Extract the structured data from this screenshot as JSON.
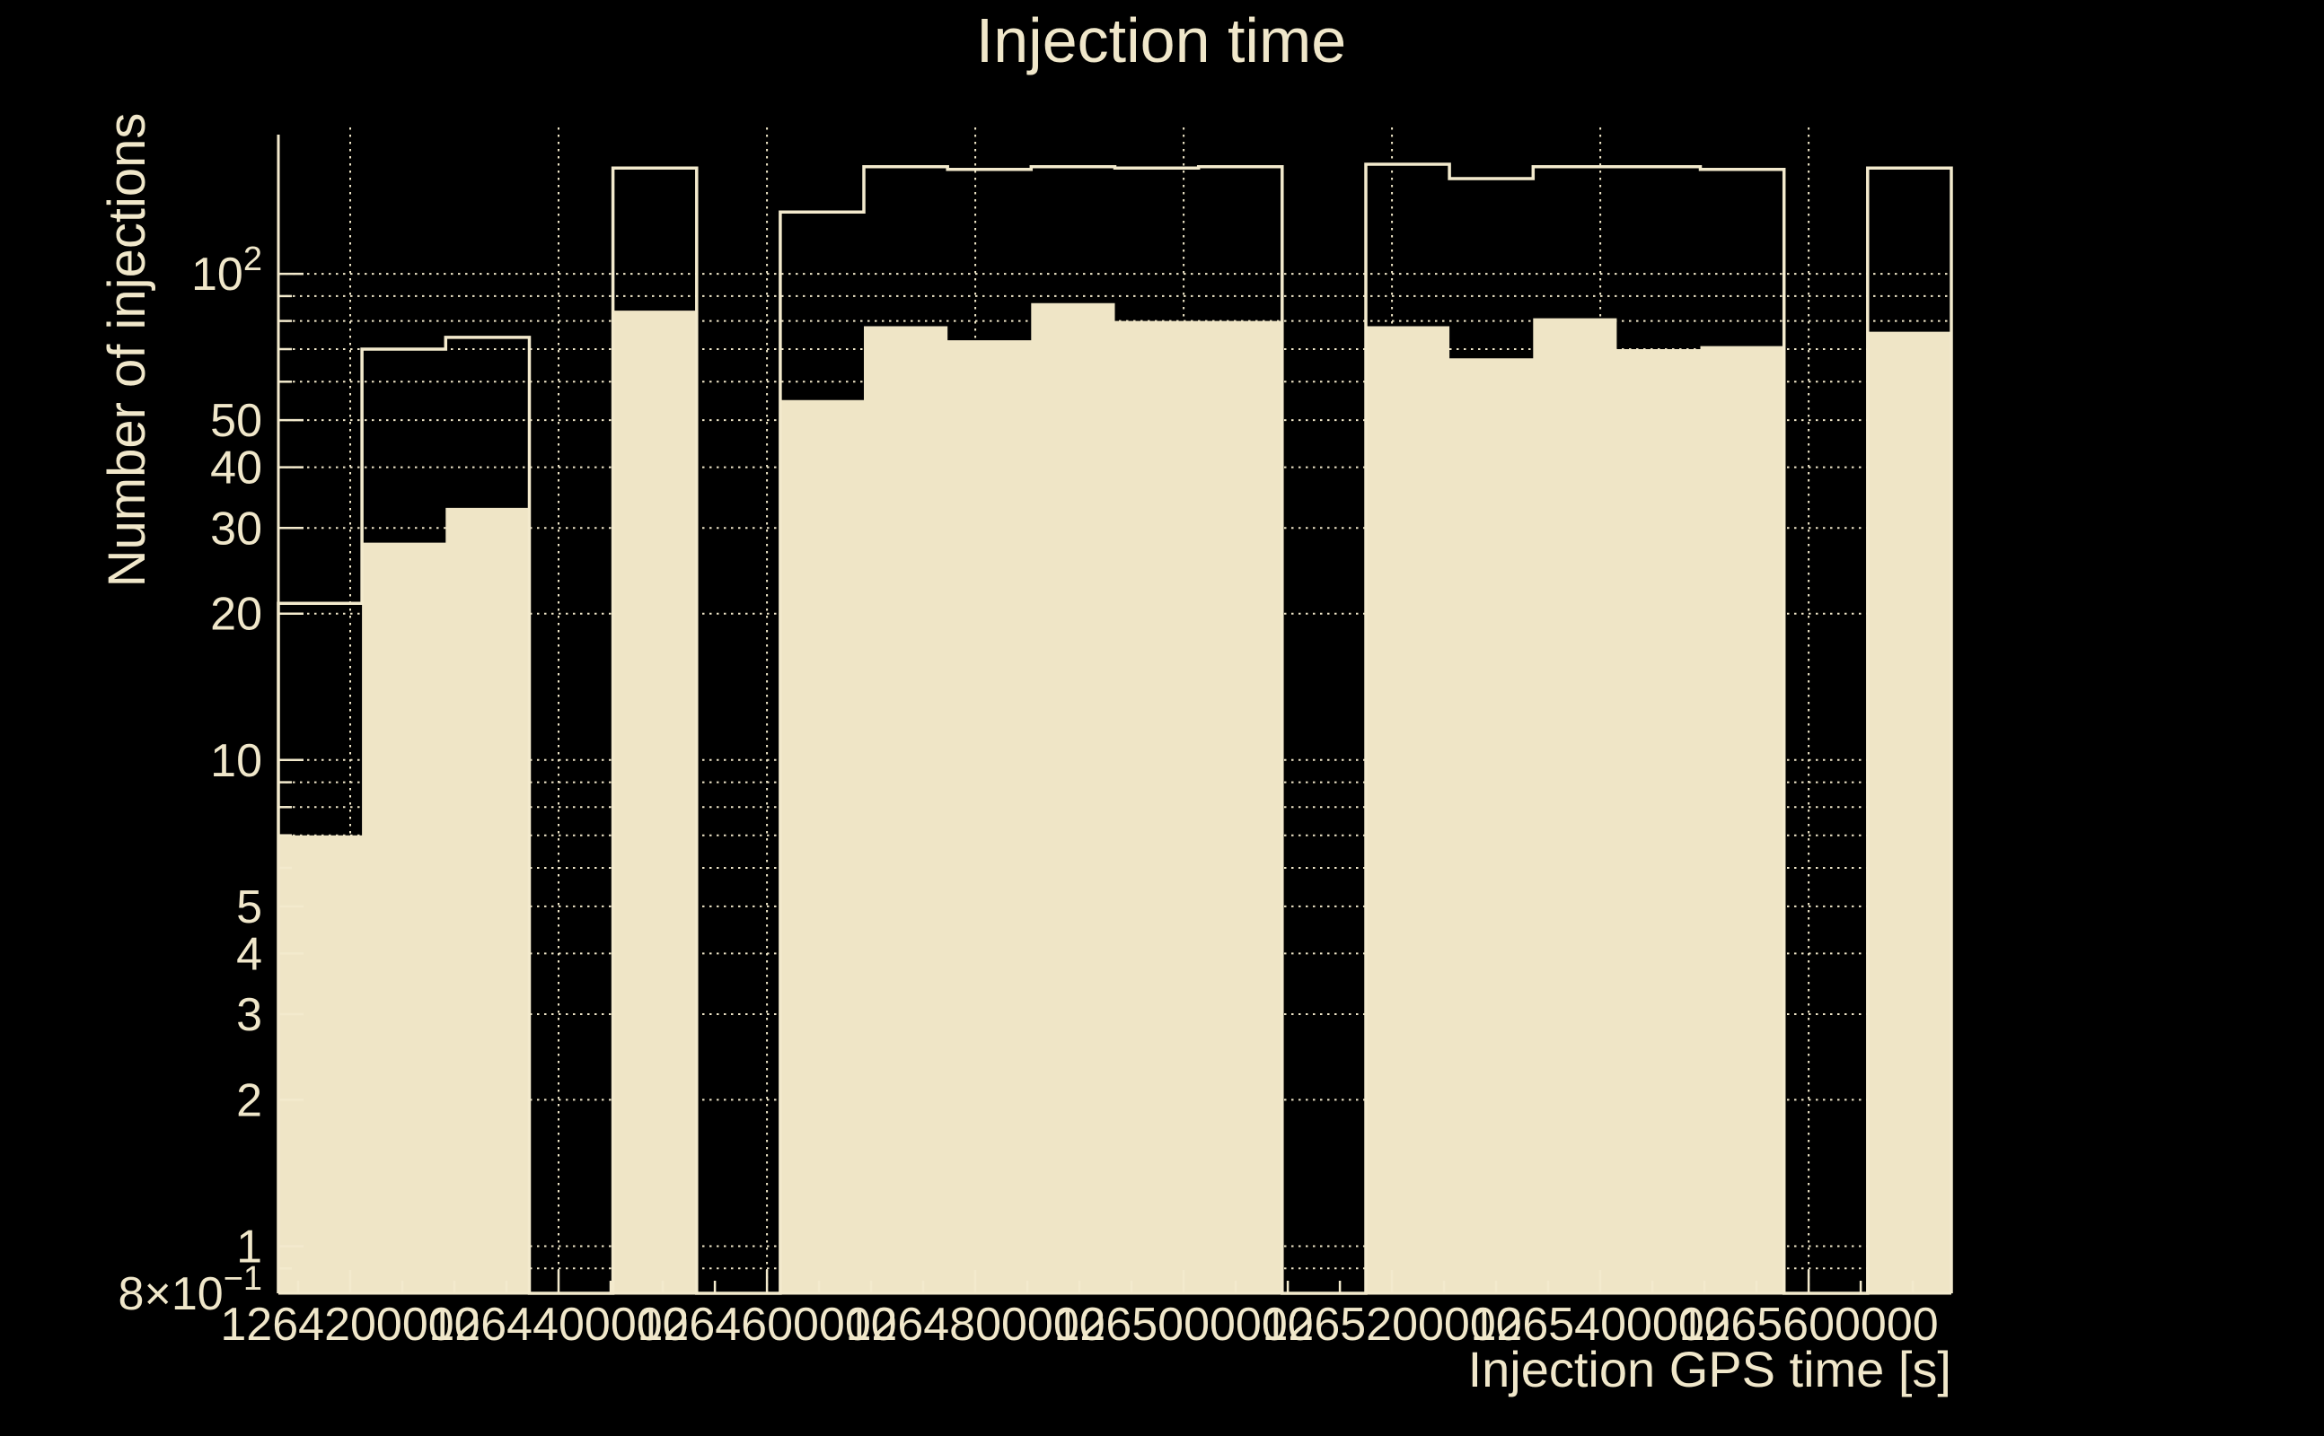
{
  "colors": {
    "background": "#000000",
    "fill": "#EFE5C6",
    "line": "#F3EACD",
    "text": "#F0E7CA",
    "grid": "#EFE6C8"
  },
  "chart_data": {
    "type": "bar",
    "style": "overlaid step histograms (ROOT), log y-axis, filled series under open-outline series",
    "title": "Injection time",
    "xlabel": "Injection GPS time [s]",
    "ylabel": "Number of injections",
    "x_range": [
      1264131000,
      1265737000
    ],
    "y_range": [
      0.8,
      200
    ],
    "log_y": true,
    "grid": true,
    "legend_position": "none",
    "bin_edges_gps": [
      1264131000,
      1264211300,
      1264291600,
      1264371900,
      1264452200,
      1264532500,
      1264612800,
      1264693100,
      1264773400,
      1264853700,
      1264934000,
      1265014300,
      1265094600,
      1265174900,
      1265255200,
      1265335500,
      1265415800,
      1265496100,
      1265576400,
      1265656700,
      1265737000
    ],
    "series": [
      {
        "name": "outline-histogram",
        "draw": "step-outline",
        "values": [
          21,
          70,
          74,
          0,
          165,
          0,
          134,
          166,
          164,
          166,
          165,
          166,
          0,
          168,
          157,
          166,
          166,
          164,
          0,
          165
        ]
      },
      {
        "name": "filled-histogram",
        "draw": "filled",
        "values": [
          7,
          28,
          33,
          0,
          84,
          0,
          55,
          78,
          73,
          87,
          80,
          80,
          0,
          78,
          67,
          81,
          70,
          71,
          0,
          76
        ]
      }
    ],
    "x_ticks": [
      1264200000,
      1264400000,
      1264600000,
      1264800000,
      1265000000,
      1265200000,
      1265400000,
      1265600000
    ],
    "x_minor_tick_step": 50000,
    "y_tick_labels": [
      {
        "value": 100,
        "text": "10",
        "sup": "2"
      },
      {
        "value": 50,
        "text": "50"
      },
      {
        "value": 40,
        "text": "40"
      },
      {
        "value": 30,
        "text": "30"
      },
      {
        "value": 20,
        "text": "20"
      },
      {
        "value": 10,
        "text": "10"
      },
      {
        "value": 5,
        "text": "5"
      },
      {
        "value": 4,
        "text": "4"
      },
      {
        "value": 3,
        "text": "3"
      },
      {
        "value": 2,
        "text": "2"
      },
      {
        "value": 1,
        "text": "1"
      },
      {
        "value": 0.8,
        "text": "8×10",
        "sup": "−1"
      }
    ]
  }
}
